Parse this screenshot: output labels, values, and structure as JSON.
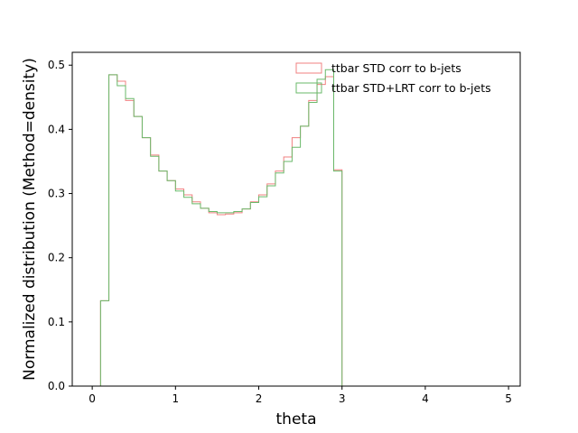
{
  "chart_data": {
    "type": "histogram-step",
    "xlabel": "theta",
    "ylabel": "Normalized distribution (Method=density)",
    "xlim": [
      -0.24,
      5.14
    ],
    "ylim": [
      0,
      0.52
    ],
    "xticks": [
      0,
      1,
      2,
      3,
      4,
      5
    ],
    "yticks": [
      0.0,
      0.1,
      0.2,
      0.3,
      0.4,
      0.5
    ],
    "xtick_labels": [
      "0",
      "1",
      "2",
      "3",
      "4",
      "5"
    ],
    "ytick_labels": [
      "0.0",
      "0.1",
      "0.2",
      "0.3",
      "0.4",
      "0.5"
    ],
    "grid": false,
    "legend_position": "top-right",
    "bin_edges": [
      0.0,
      0.1,
      0.2,
      0.3,
      0.4,
      0.5,
      0.6,
      0.7,
      0.8,
      0.9,
      1.0,
      1.1,
      1.2,
      1.3,
      1.4,
      1.5,
      1.6,
      1.7,
      1.8,
      1.9,
      2.0,
      2.1,
      2.2,
      2.3,
      2.4,
      2.5,
      2.6,
      2.7,
      2.8,
      2.9,
      3.0,
      3.1,
      3.2,
      3.3,
      3.4,
      3.5,
      3.6,
      3.7,
      3.8,
      3.9,
      4.0,
      4.1,
      4.2,
      4.3,
      4.4,
      4.5,
      4.6,
      4.7,
      4.8,
      4.9
    ],
    "series": [
      {
        "name": "ttbar STD corr to b-jets",
        "color": "#f08080",
        "values": [
          0.0,
          0.133,
          0.485,
          0.475,
          0.445,
          0.42,
          0.387,
          0.36,
          0.335,
          0.32,
          0.307,
          0.298,
          0.287,
          0.277,
          0.27,
          0.267,
          0.268,
          0.27,
          0.276,
          0.287,
          0.298,
          0.315,
          0.335,
          0.357,
          0.387,
          0.405,
          0.445,
          0.47,
          0.482,
          0.337,
          0.0,
          0.0,
          0.0,
          0.0,
          0.0,
          0.0,
          0.0,
          0.0,
          0.0,
          0.0,
          0.0,
          0.0,
          0.0,
          0.0,
          0.0,
          0.0,
          0.0,
          0.0,
          0.0
        ]
      },
      {
        "name": "ttbar STD+LRT corr to b-jets",
        "color": "#6ab96a",
        "values": [
          0.0,
          0.133,
          0.485,
          0.468,
          0.448,
          0.42,
          0.387,
          0.358,
          0.335,
          0.32,
          0.304,
          0.294,
          0.284,
          0.277,
          0.272,
          0.27,
          0.27,
          0.272,
          0.276,
          0.286,
          0.295,
          0.312,
          0.332,
          0.35,
          0.372,
          0.405,
          0.442,
          0.478,
          0.493,
          0.335,
          0.0,
          0.0,
          0.0,
          0.0,
          0.0,
          0.0,
          0.0,
          0.0,
          0.0,
          0.0,
          0.0,
          0.0,
          0.0,
          0.0,
          0.0,
          0.0,
          0.0,
          0.0,
          0.0
        ]
      }
    ]
  }
}
